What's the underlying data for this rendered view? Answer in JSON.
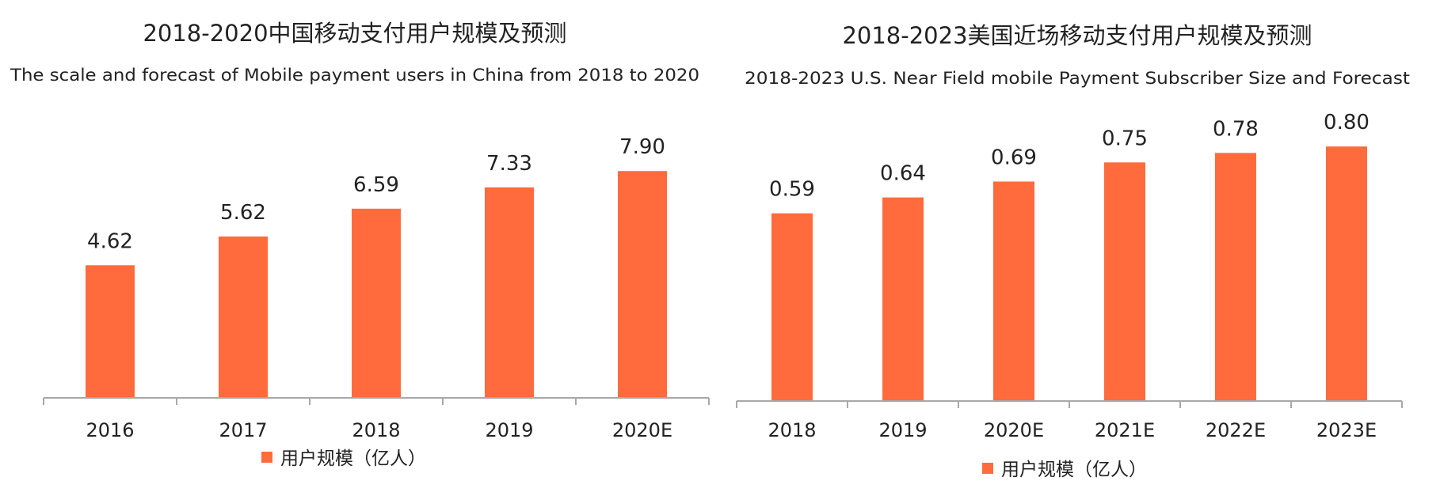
{
  "colors": {
    "bar": "#FF6B3D",
    "axis": "#A8A8A8",
    "text": "#222222",
    "background": "#FFFFFF"
  },
  "chart_data": [
    {
      "type": "bar",
      "title": "2018-2020中国移动支付用户规模及预测",
      "subtitle": "The scale and forecast of Mobile payment users in China from 2018 to 2020",
      "categories": [
        "2016",
        "2017",
        "2018",
        "2019",
        "2020E"
      ],
      "series": [
        {
          "name": "用户规模（亿人）",
          "values": [
            4.62,
            5.62,
            6.59,
            7.33,
            7.9
          ]
        }
      ],
      "value_labels": [
        "4.62",
        "5.62",
        "6.59",
        "7.33",
        "7.90"
      ],
      "ylim": [
        0,
        10
      ],
      "grid": false,
      "legend_position": "bottom-center",
      "xlabel": "",
      "ylabel": ""
    },
    {
      "type": "bar",
      "title": "2018-2023美国近场移动支付用户规模及预测",
      "subtitle": "2018-2023 U.S. Near Field mobile Payment Subscriber Size and Forecast",
      "categories": [
        "2018",
        "2019",
        "2020E",
        "2021E",
        "2022E",
        "2023E"
      ],
      "series": [
        {
          "name": "用户规模（亿人）",
          "values": [
            0.59,
            0.64,
            0.69,
            0.75,
            0.78,
            0.8
          ]
        }
      ],
      "value_labels": [
        "0.59",
        "0.64",
        "0.69",
        "0.75",
        "0.78",
        "0.80"
      ],
      "ylim": [
        0,
        0.9
      ],
      "grid": false,
      "legend_position": "bottom-center",
      "xlabel": "",
      "ylabel": ""
    }
  ]
}
